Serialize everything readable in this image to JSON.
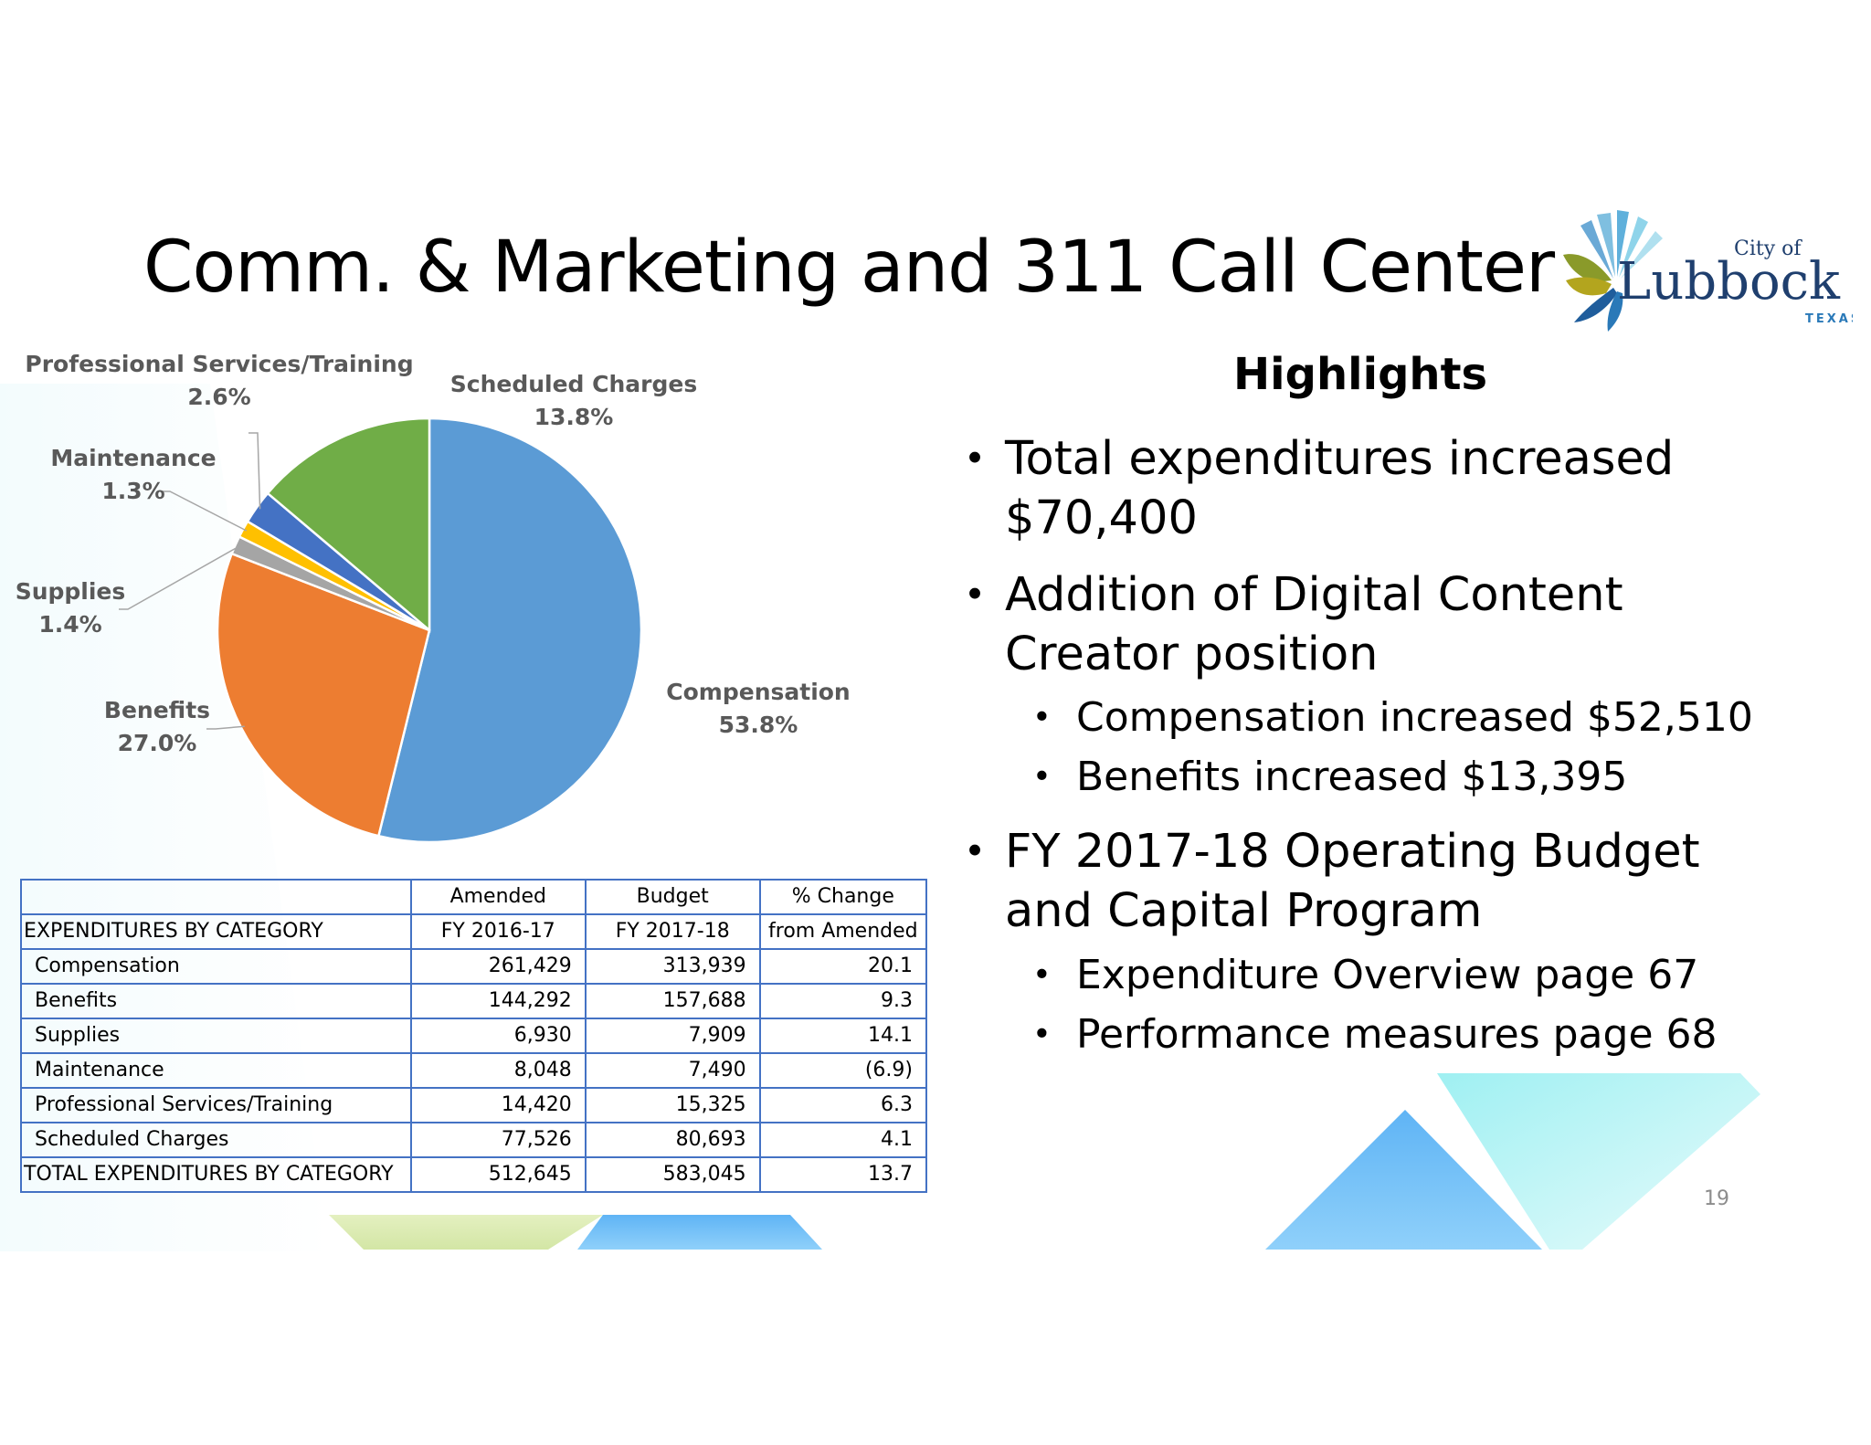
{
  "slide": {
    "title": "Comm. & Marketing and 311 Call Center",
    "page_number": "19"
  },
  "logo": {
    "line1": "City of",
    "line2": "Lubbock",
    "line3": "TEXAS"
  },
  "colors": {
    "compensation": "#5b9bd5",
    "benefits": "#ed7d31",
    "supplies": "#a5a5a5",
    "maintenance": "#ffc000",
    "professional": "#4472c4",
    "scheduled": "#70ad47",
    "table_border": "#4472c4",
    "label_text": "#595959"
  },
  "chart_data": {
    "type": "pie",
    "slices": [
      {
        "name": "Compensation",
        "value": 53.8,
        "label": "53.8%"
      },
      {
        "name": "Benefits",
        "value": 27.0,
        "label": "27.0%"
      },
      {
        "name": "Supplies",
        "value": 1.4,
        "label": "1.4%"
      },
      {
        "name": "Maintenance",
        "value": 1.3,
        "label": "1.3%"
      },
      {
        "name": "Professional Services/Training",
        "value": 2.6,
        "label": "2.6%"
      },
      {
        "name": "Scheduled Charges",
        "value": 13.8,
        "label": "13.8%"
      }
    ]
  },
  "table": {
    "header_row1": [
      "",
      "Amended",
      "Budget",
      "% Change"
    ],
    "header_row2": [
      "EXPENDITURES BY CATEGORY",
      "FY 2016-17",
      "FY 2017-18",
      "from Amended"
    ],
    "rows": [
      [
        "Compensation",
        "261,429",
        "313,939",
        "20.1"
      ],
      [
        "Benefits",
        "144,292",
        "157,688",
        "9.3"
      ],
      [
        "Supplies",
        "6,930",
        "7,909",
        "14.1"
      ],
      [
        "Maintenance",
        "8,048",
        "7,490",
        "(6.9)"
      ],
      [
        "Professional Services/Training",
        "14,420",
        "15,325",
        "6.3"
      ],
      [
        "Scheduled Charges",
        "77,526",
        "80,693",
        "4.1"
      ]
    ],
    "total": [
      "TOTAL EXPENDITURES BY CATEGORY",
      "512,645",
      "583,045",
      "13.7"
    ]
  },
  "highlights": {
    "title": "Highlights",
    "b1_line1": "Total expenditures increased",
    "b1_line2": "$70,400",
    "b2_line1": "Addition of Digital Content",
    "b2_line2": "Creator position",
    "b2_sub1": "Compensation increased $52,510",
    "b2_sub2": "Benefits increased $13,395",
    "b3_line1": "FY 2017-18 Operating Budget",
    "b3_line2": "and Capital Program",
    "b3_sub1": "Expenditure Overview page 67",
    "b3_sub2": "Performance measures page 68"
  }
}
